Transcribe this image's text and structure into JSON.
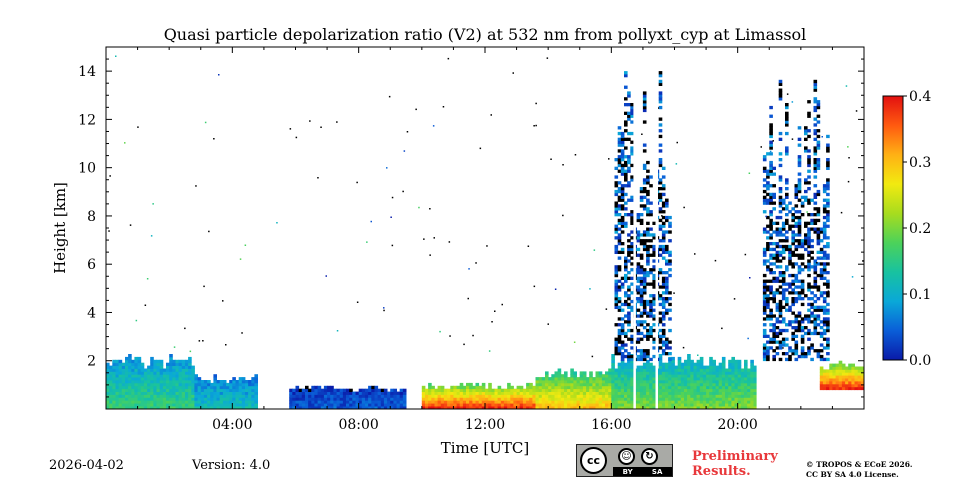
{
  "chart_data": {
    "type": "heatmap",
    "title": "Quasi particle depolarization ratio (V2) at 532 nm from pollyxt_cyp at Limassol",
    "xlabel": "Time [UTC]",
    "ylabel": "Height [km]",
    "xlim_hours": [
      0,
      24
    ],
    "ylim_km": [
      0,
      15
    ],
    "xticks": [
      {
        "value": 4,
        "label": "04:00"
      },
      {
        "value": 8,
        "label": "08:00"
      },
      {
        "value": 12,
        "label": "12:00"
      },
      {
        "value": 16,
        "label": "16:00"
      },
      {
        "value": 20,
        "label": "20:00"
      }
    ],
    "yticks": [
      {
        "value": 2,
        "label": "2"
      },
      {
        "value": 4,
        "label": "4"
      },
      {
        "value": 6,
        "label": "6"
      },
      {
        "value": 8,
        "label": "8"
      },
      {
        "value": 10,
        "label": "10"
      },
      {
        "value": 12,
        "label": "12"
      },
      {
        "value": 14,
        "label": "14"
      }
    ],
    "colorbar": {
      "min": 0.0,
      "max": 0.4,
      "ticks": [
        {
          "value": 0.0,
          "label": "0.0"
        },
        {
          "value": 0.1,
          "label": "0.1"
        },
        {
          "value": 0.2,
          "label": "0.2"
        },
        {
          "value": 0.3,
          "label": "0.3"
        },
        {
          "value": 0.4,
          "label": "0.4"
        }
      ],
      "colormap": [
        "#0a1aa8",
        "#0a5ed8",
        "#0aa8d8",
        "#18c2a0",
        "#4cd25a",
        "#a8dc1e",
        "#f2ea10",
        "#ffb014",
        "#ff5a10",
        "#e21010"
      ]
    },
    "regions": [
      {
        "desc": "morning boundary layer",
        "t0": 0.0,
        "t1": 2.8,
        "h0": 0.0,
        "h1": 2.2,
        "value": 0.16
      },
      {
        "desc": "boundary layer",
        "t0": 2.8,
        "t1": 4.8,
        "h0": 0.0,
        "h1": 1.4,
        "value": 0.12
      },
      {
        "desc": "low clean layer",
        "t0": 5.8,
        "t1": 9.5,
        "h0": 0.0,
        "h1": 0.9,
        "value": 0.04
      },
      {
        "desc": "dust near surface",
        "t0": 10.0,
        "t1": 13.6,
        "h0": 0.0,
        "h1": 1.0,
        "value": 0.38
      },
      {
        "desc": "dust layer",
        "t0": 13.6,
        "t1": 16.0,
        "h0": 0.0,
        "h1": 1.6,
        "value": 0.3
      },
      {
        "desc": "afternoon aerosol",
        "t0": 16.0,
        "t1": 20.6,
        "h0": 0.0,
        "h1": 2.2,
        "value": 0.2
      },
      {
        "desc": "high cloud / noise",
        "t0": 16.1,
        "t1": 17.9,
        "h0": 2.0,
        "h1": 14.5,
        "value": 0.05
      },
      {
        "desc": "high cloud / noise",
        "t0": 20.8,
        "t1": 22.9,
        "h0": 2.0,
        "h1": 14.2,
        "value": 0.05
      },
      {
        "desc": "evening dust",
        "t0": 22.6,
        "t1": 24.0,
        "h0": 0.8,
        "h1": 1.9,
        "value": 0.38
      }
    ]
  },
  "footer": {
    "date": "2026-04-02",
    "version": "Version: 4.0",
    "preliminary_line1": "Preliminary",
    "preliminary_line2": "Results.",
    "copyright_line1": "© TROPOS & ECoE 2026.",
    "copyright_line2": "CC BY SA 4.0 License."
  },
  "license_badge": {
    "cc": "cc",
    "by": "BY",
    "sa": "SA"
  }
}
